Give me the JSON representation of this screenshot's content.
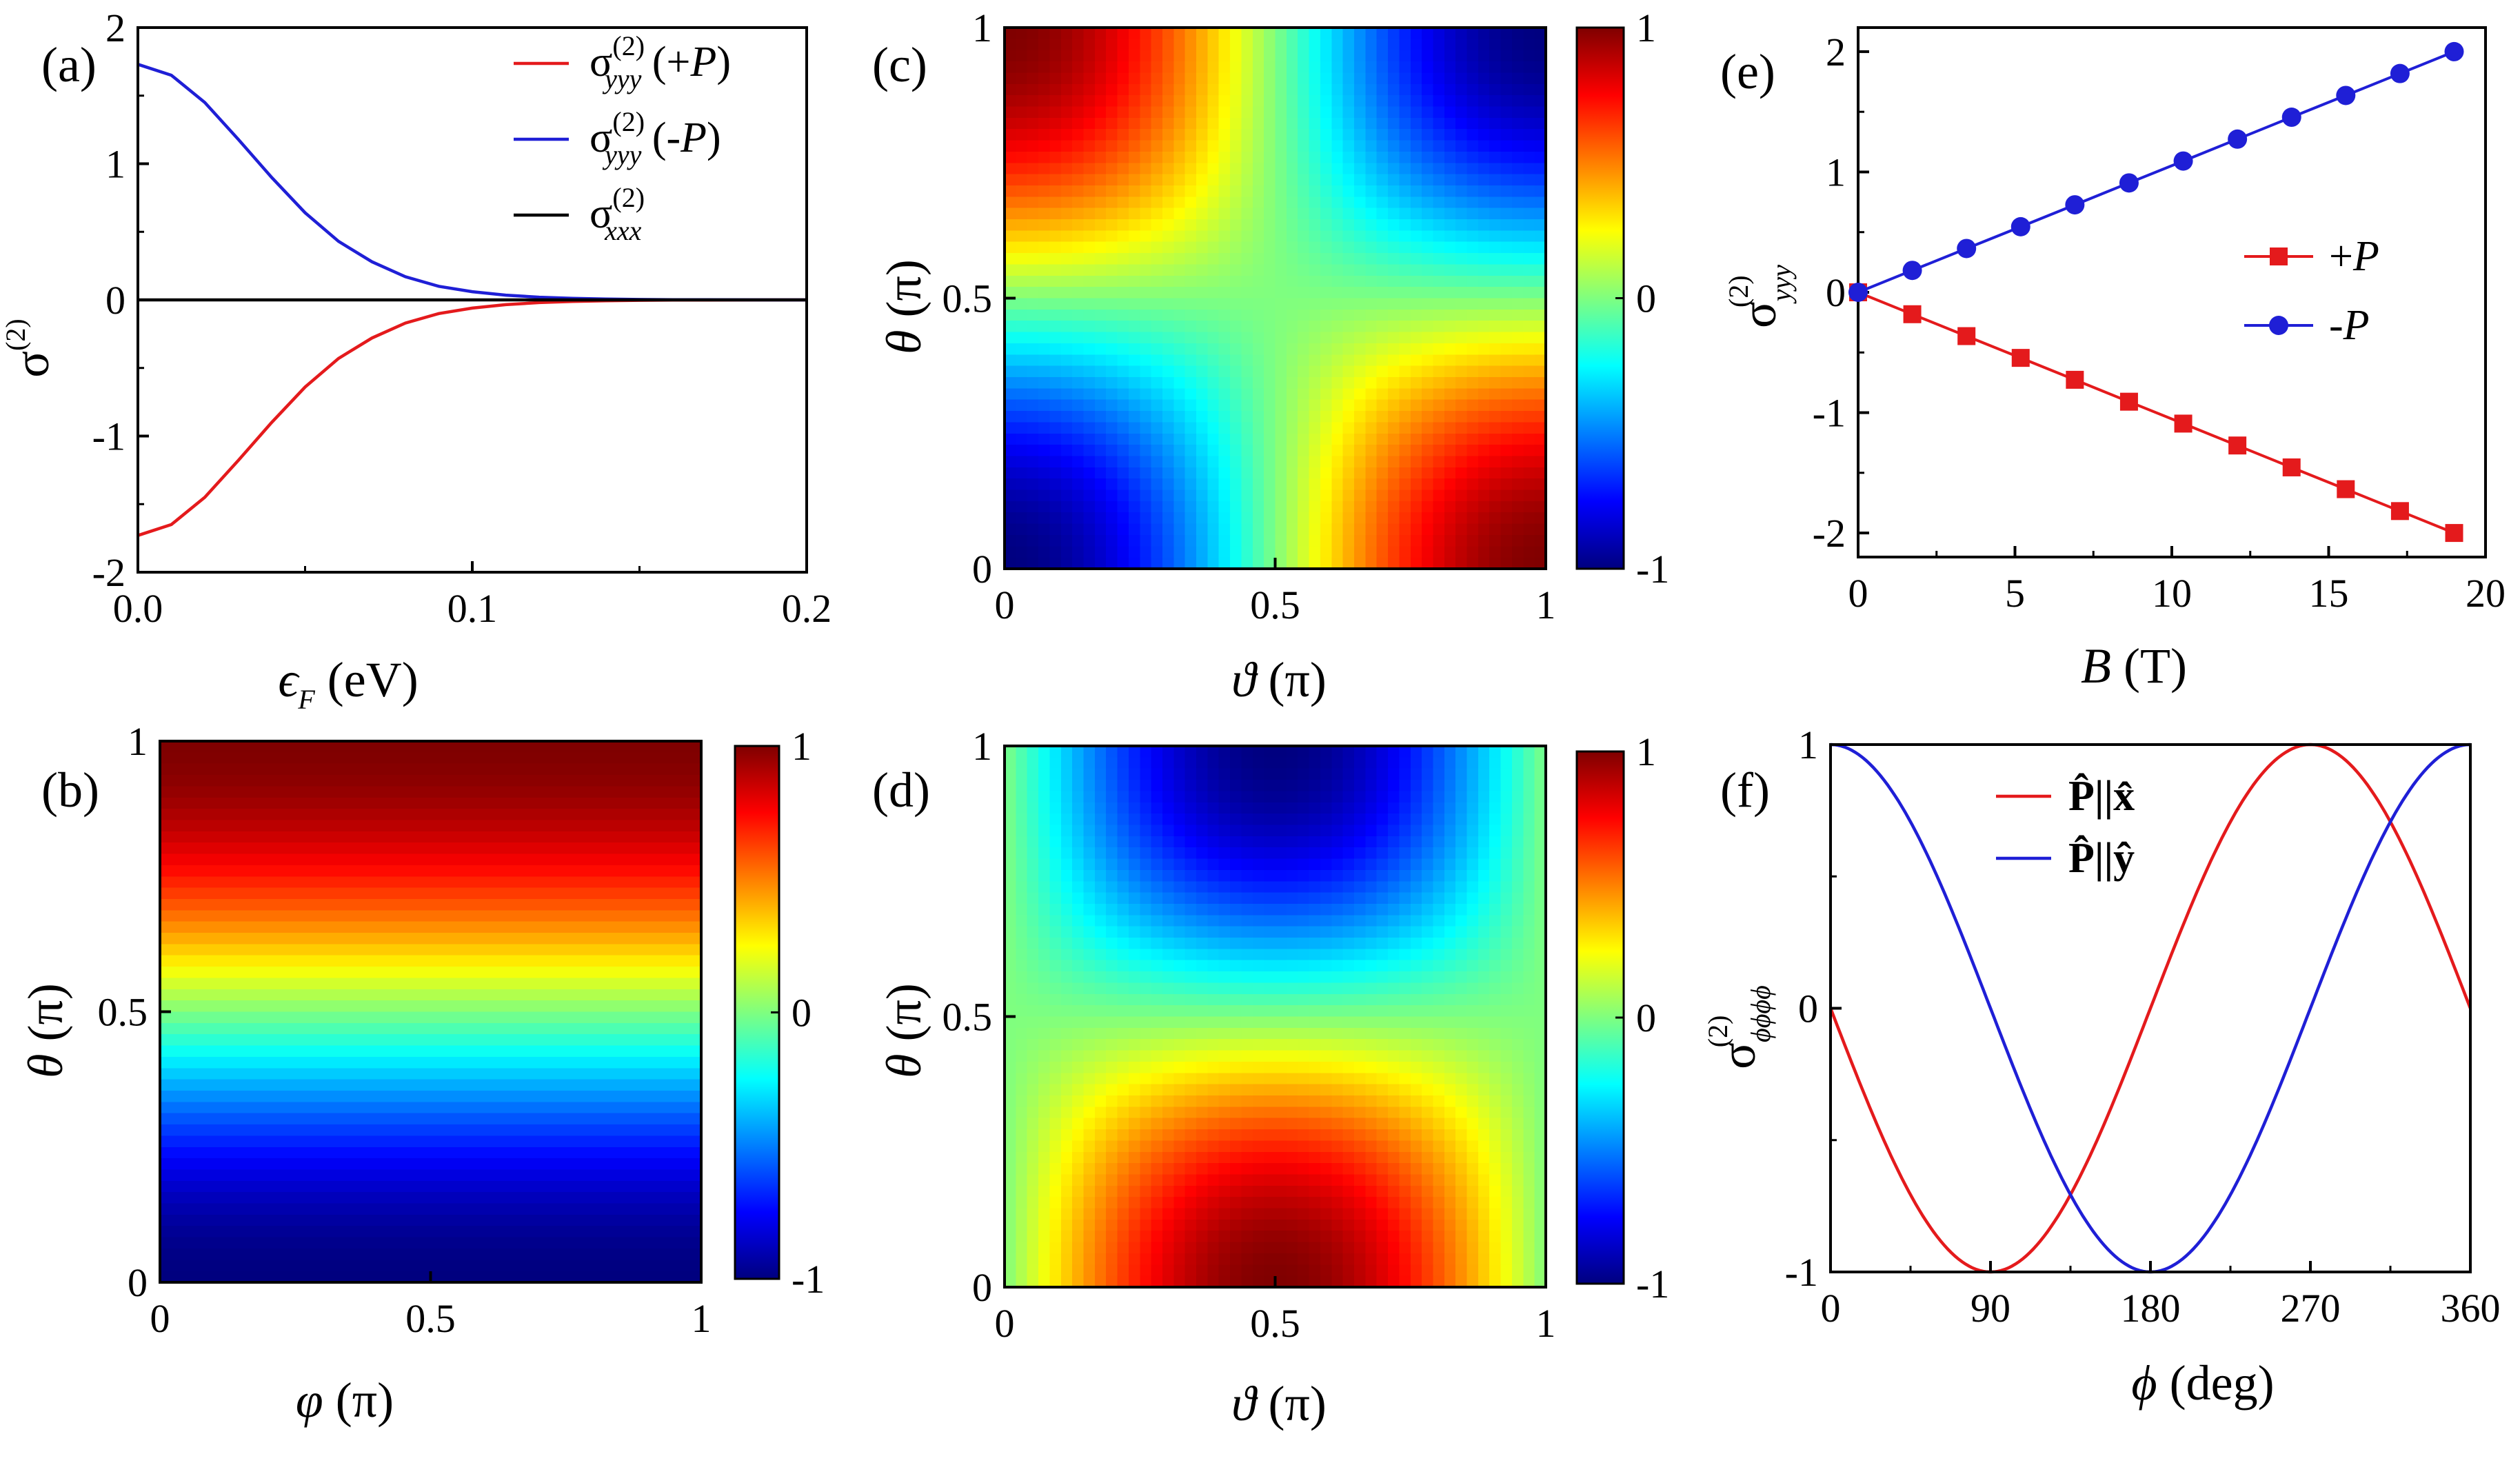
{
  "figure": {
    "colormap": [
      "#00007f",
      "#0000ff",
      "#007fff",
      "#00ffff",
      "#7fff7f",
      "#ffff00",
      "#ff7f00",
      "#ff0000",
      "#7f0000"
    ]
  },
  "chart_data": [
    {
      "id": "a",
      "type": "line",
      "panel_label": "(a)",
      "xlabel": "ϵF (eV)",
      "ylabel": "σ(2)",
      "xlim": [
        0,
        0.2
      ],
      "ylim": [
        -2,
        2
      ],
      "x_ticks": [
        "0.0",
        "0.1",
        "0.2"
      ],
      "y_ticks": [
        "-2",
        "-1",
        "0",
        "1",
        "2"
      ],
      "series": [
        {
          "name": "σyyy(2) (+P)",
          "color": "#e41a1c",
          "x": [
            0,
            0.01,
            0.02,
            0.03,
            0.04,
            0.05,
            0.06,
            0.07,
            0.08,
            0.09,
            0.1,
            0.11,
            0.12,
            0.13,
            0.14,
            0.15,
            0.16,
            0.17,
            0.18,
            0.19,
            0.2
          ],
          "y": [
            -1.73,
            -1.65,
            -1.45,
            -1.18,
            -0.9,
            -0.64,
            -0.43,
            -0.28,
            -0.17,
            -0.1,
            -0.06,
            -0.035,
            -0.02,
            -0.011,
            -0.006,
            -0.003,
            -0.0016,
            -0.0008,
            -0.0004,
            -0.0002,
            -0.0001
          ]
        },
        {
          "name": "σyyy(2) (-P)",
          "color": "#1f1fd6",
          "x": [
            0,
            0.01,
            0.02,
            0.03,
            0.04,
            0.05,
            0.06,
            0.07,
            0.08,
            0.09,
            0.1,
            0.11,
            0.12,
            0.13,
            0.14,
            0.15,
            0.16,
            0.17,
            0.18,
            0.19,
            0.2
          ],
          "y": [
            1.73,
            1.65,
            1.45,
            1.18,
            0.9,
            0.64,
            0.43,
            0.28,
            0.17,
            0.1,
            0.06,
            0.035,
            0.02,
            0.011,
            0.006,
            0.003,
            0.0016,
            0.0008,
            0.0004,
            0.0002,
            0.0001
          ]
        },
        {
          "name": "σxxx(2)",
          "color": "#000000",
          "x": [
            0,
            0.2
          ],
          "y": [
            0,
            0
          ]
        }
      ],
      "legend": {
        "items": [
          {
            "base": "σ",
            "sup": "(2)",
            "sub": "yyy",
            "suffix_pre": " (+",
            "suffix_ital": "P",
            "suffix_post": ")",
            "color": "#e41a1c"
          },
          {
            "base": "σ",
            "sup": "(2)",
            "sub": "yyy",
            "suffix_pre": " (-",
            "suffix_ital": "P",
            "suffix_post": ")",
            "color": "#1f1fd6"
          },
          {
            "base": "σ",
            "sup": "(2)",
            "sub": "xxx",
            "suffix_pre": "",
            "suffix_ital": "",
            "suffix_post": "",
            "color": "#000000"
          }
        ]
      }
    },
    {
      "id": "b",
      "type": "heatmap",
      "panel_label": "(b)",
      "xlabel": "φ (π)",
      "ylabel": "θ (π)",
      "xlim": [
        0,
        1
      ],
      "ylim": [
        0,
        1
      ],
      "x_ticks": [
        "0",
        "0.5",
        "1"
      ],
      "y_ticks": [
        "0",
        "0.5",
        "1"
      ],
      "colorbar_ticks": [
        "-1",
        "0",
        "1"
      ],
      "function": "-cos(pi*theta)"
    },
    {
      "id": "c",
      "type": "heatmap",
      "panel_label": "(c)",
      "xlabel": "ϑ (π)",
      "ylabel": "θ (π)",
      "xlim": [
        0,
        1
      ],
      "ylim": [
        0,
        1
      ],
      "x_ticks": [
        "0",
        "0.5",
        "1"
      ],
      "y_ticks": [
        "0",
        "0.5",
        "1"
      ],
      "colorbar_ticks": [
        "-1",
        "0",
        "1"
      ],
      "function": "-cos(pi*theta)*cos(pi*vartheta)"
    },
    {
      "id": "d",
      "type": "heatmap",
      "panel_label": "(d)",
      "xlabel": "ϑ (π)",
      "ylabel": "θ (π)",
      "xlim": [
        0,
        1
      ],
      "ylim": [
        0,
        1
      ],
      "x_ticks": [
        "0",
        "0.5",
        "1"
      ],
      "y_ticks": [
        "0",
        "0.5",
        "1"
      ],
      "colorbar_ticks": [
        "-1",
        "0",
        "1"
      ],
      "function": "cos(pi*theta)*sin(pi*vartheta)"
    },
    {
      "id": "e",
      "type": "scatter",
      "panel_label": "(e)",
      "xlabel": "B (T)",
      "ylabel": "σyyy(2)",
      "xlim": [
        0,
        20
      ],
      "ylim": [
        -2.2,
        2.2
      ],
      "x_ticks": [
        "0",
        "5",
        "10",
        "15",
        "20"
      ],
      "y_ticks": [
        "-2",
        "-1",
        "0",
        "1",
        "2"
      ],
      "series": [
        {
          "name": "+P",
          "color": "#e41a1c",
          "marker": "square",
          "x": [
            0,
            1.727,
            3.455,
            5.182,
            6.909,
            8.636,
            10.364,
            12.091,
            13.818,
            15.545,
            17.273,
            19
          ],
          "y": [
            0,
            -0.182,
            -0.364,
            -0.545,
            -0.727,
            -0.909,
            -1.091,
            -1.273,
            -1.455,
            -1.636,
            -1.818,
            -2
          ]
        },
        {
          "name": "-P",
          "color": "#1f1fd6",
          "marker": "circle",
          "x": [
            0,
            1.727,
            3.455,
            5.182,
            6.909,
            8.636,
            10.364,
            12.091,
            13.818,
            15.545,
            17.273,
            19
          ],
          "y": [
            0,
            0.182,
            0.364,
            0.545,
            0.727,
            0.909,
            1.091,
            1.273,
            1.455,
            1.636,
            1.818,
            2
          ]
        }
      ],
      "legend": {
        "items": [
          {
            "label_pre": "+",
            "label_ital": "P",
            "color": "#e41a1c",
            "marker": "square"
          },
          {
            "label_pre": "-",
            "label_ital": "P",
            "color": "#1f1fd6",
            "marker": "circle"
          }
        ]
      }
    },
    {
      "id": "f",
      "type": "line",
      "panel_label": "(f)",
      "xlabel": "ϕ (deg)",
      "ylabel": "σϕϕϕϕ(2)",
      "xlim": [
        0,
        360
      ],
      "ylim": [
        -1,
        1
      ],
      "x_ticks": [
        "0",
        "90",
        "180",
        "270",
        "360"
      ],
      "y_ticks": [
        "-1",
        "0",
        "1"
      ],
      "series": [
        {
          "name": "P||x",
          "color": "#e41a1c",
          "function": "-sin(phi)"
        },
        {
          "name": "P||y",
          "color": "#1f1fd6",
          "function": "cos(phi)"
        }
      ],
      "legend": {
        "items": [
          {
            "label": "P̂||x̂",
            "color": "#e41a1c"
          },
          {
            "label": "P̂||ŷ",
            "color": "#1f1fd6"
          }
        ]
      }
    }
  ]
}
